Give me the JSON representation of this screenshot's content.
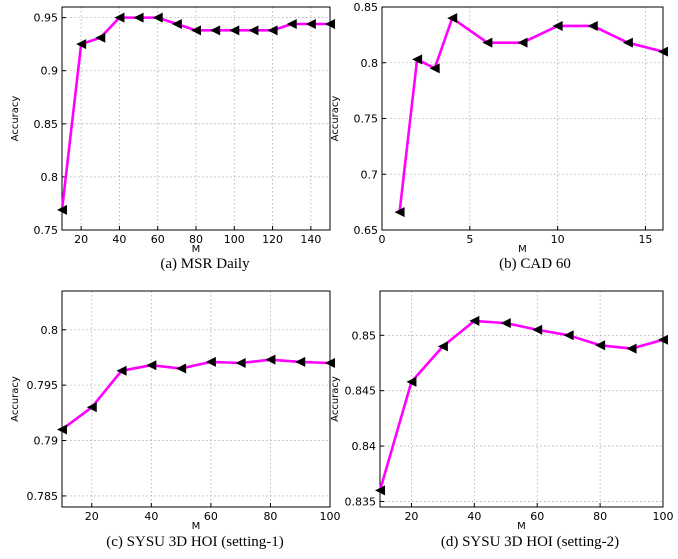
{
  "chart_data": [
    {
      "type": "line",
      "caption": "(a) MSR Daily",
      "xlabel": "M",
      "ylabel": "Accuracy",
      "xlim": [
        10,
        150
      ],
      "ylim": [
        0.75,
        0.96
      ],
      "xticks": [
        20,
        40,
        60,
        80,
        100,
        120,
        140
      ],
      "yticks": [
        0.75,
        0.8,
        0.85,
        0.9,
        0.95
      ],
      "ytick_labels": [
        "0.75",
        "0.8",
        "0.85",
        "0.9",
        "0.95"
      ],
      "grid": true,
      "line_color": "#ff00ff",
      "marker": "left-triangle",
      "series": [
        {
          "x": [
            10,
            20,
            30,
            40,
            50,
            60,
            70,
            80,
            90,
            100,
            110,
            120,
            130,
            140,
            150
          ],
          "y": [
            0.769,
            0.925,
            0.931,
            0.95,
            0.95,
            0.95,
            0.944,
            0.938,
            0.938,
            0.938,
            0.938,
            0.938,
            0.944,
            0.944,
            0.944
          ]
        }
      ]
    },
    {
      "type": "line",
      "caption": "(b) CAD 60",
      "xlabel": "M",
      "ylabel": "Accuracy",
      "xlim": [
        0,
        16
      ],
      "ylim": [
        0.65,
        0.85
      ],
      "xticks": [
        0,
        5,
        10,
        15
      ],
      "yticks": [
        0.65,
        0.7,
        0.75,
        0.8,
        0.85
      ],
      "ytick_labels": [
        "0.65",
        "0.7",
        "0.75",
        "0.8",
        "0.85"
      ],
      "grid": true,
      "line_color": "#ff00ff",
      "marker": "left-triangle",
      "series": [
        {
          "x": [
            1,
            2,
            3,
            4,
            6,
            8,
            10,
            12,
            14,
            16
          ],
          "y": [
            0.666,
            0.803,
            0.795,
            0.84,
            0.818,
            0.818,
            0.833,
            0.833,
            0.818,
            0.81
          ]
        }
      ]
    },
    {
      "type": "line",
      "caption": "(c) SYSU 3D HOI (setting-1)",
      "xlabel": "M",
      "ylabel": "Accuracy",
      "xlim": [
        10,
        100
      ],
      "ylim": [
        0.784,
        0.8035
      ],
      "xticks": [
        20,
        40,
        60,
        80,
        100
      ],
      "yticks": [
        0.785,
        0.79,
        0.795,
        0.8
      ],
      "ytick_labels": [
        "0.785",
        "0.79",
        "0.795",
        "0.8"
      ],
      "grid": true,
      "line_color": "#ff00ff",
      "marker": "left-triangle",
      "series": [
        {
          "x": [
            10,
            20,
            30,
            40,
            50,
            60,
            70,
            80,
            90,
            100
          ],
          "y": [
            0.791,
            0.793,
            0.7963,
            0.7968,
            0.7965,
            0.7971,
            0.797,
            0.7973,
            0.7971,
            0.797
          ]
        }
      ]
    },
    {
      "type": "line",
      "caption": "(d) SYSU 3D HOI (setting-2)",
      "xlabel": "M",
      "ylabel": "Accuracy",
      "xlim": [
        10,
        100
      ],
      "ylim": [
        0.8345,
        0.854
      ],
      "xticks": [
        20,
        40,
        60,
        80,
        100
      ],
      "yticks": [
        0.835,
        0.84,
        0.845,
        0.85
      ],
      "ytick_labels": [
        "0.835",
        "0.84",
        "0.845",
        "0.85"
      ],
      "grid": true,
      "line_color": "#ff00ff",
      "marker": "left-triangle",
      "series": [
        {
          "x": [
            10,
            20,
            30,
            40,
            50,
            60,
            70,
            80,
            90,
            100
          ],
          "y": [
            0.836,
            0.8458,
            0.849,
            0.8513,
            0.8511,
            0.8505,
            0.85,
            0.8491,
            0.8488,
            0.8496
          ]
        }
      ]
    }
  ]
}
